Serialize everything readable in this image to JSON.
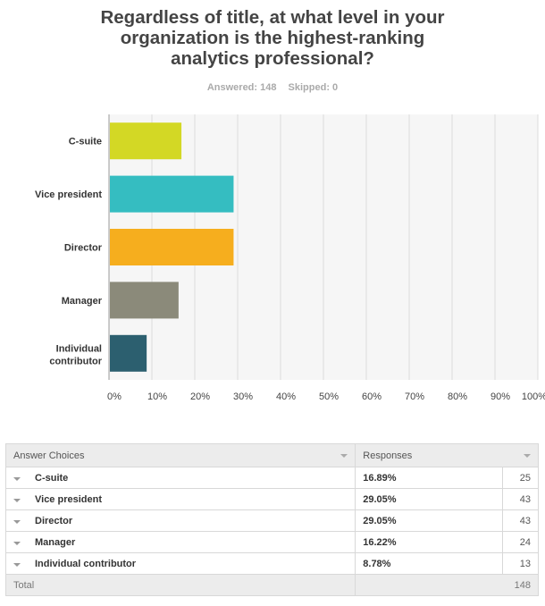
{
  "title_lines": [
    "Regardless of title, at what level in your",
    "organization is the highest-ranking",
    "analytics professional?"
  ],
  "answered_label": "Answered: 148",
  "skipped_label": "Skipped: 0",
  "chart_data": {
    "type": "bar",
    "orientation": "horizontal",
    "categories": [
      "C-suite",
      "Vice president",
      "Director",
      "Manager",
      "Individual contributor"
    ],
    "values": [
      16.89,
      29.05,
      29.05,
      16.22,
      8.78
    ],
    "colors": [
      "#d3d825",
      "#35bdc1",
      "#f6ae1e",
      "#8b8a7a",
      "#2c5f6f"
    ],
    "xlim": [
      0,
      100
    ],
    "x_ticks": [
      "0%",
      "10%",
      "20%",
      "30%",
      "40%",
      "50%",
      "60%",
      "70%",
      "80%",
      "90%",
      "100%"
    ],
    "grid": true
  },
  "table": {
    "headers": [
      "Answer Choices",
      "Responses"
    ],
    "rows": [
      {
        "choice": "C-suite",
        "percent": "16.89%",
        "count": "25"
      },
      {
        "choice": "Vice president",
        "percent": "29.05%",
        "count": "43"
      },
      {
        "choice": "Director",
        "percent": "29.05%",
        "count": "43"
      },
      {
        "choice": "Manager",
        "percent": "16.22%",
        "count": "24"
      },
      {
        "choice": "Individual contributor",
        "percent": "8.78%",
        "count": "13"
      }
    ],
    "total_label": "Total",
    "total_value": "148"
  }
}
